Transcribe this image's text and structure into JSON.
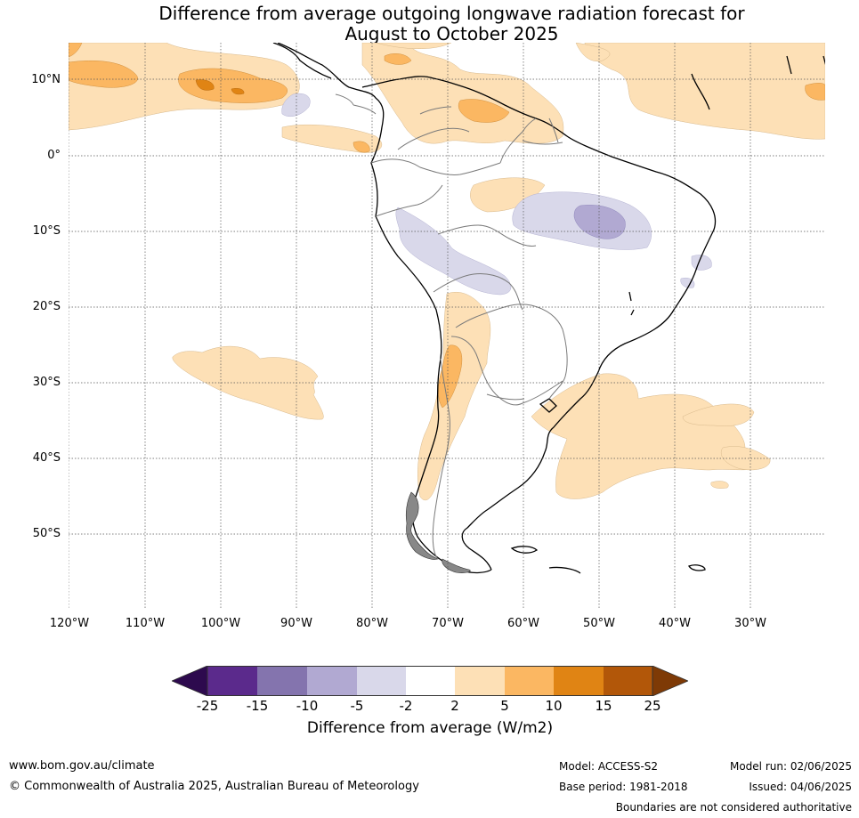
{
  "title": {
    "line1": "Difference from average outgoing longwave radiation forecast for",
    "line2": "August to October 2025"
  },
  "map": {
    "lat_labels": [
      "10°N",
      "0°",
      "10°S",
      "20°S",
      "30°S",
      "40°S",
      "50°S"
    ],
    "lon_labels": [
      "120°W",
      "110°W",
      "100°W",
      "90°W",
      "80°W",
      "70°W",
      "60°W",
      "50°W",
      "40°W",
      "30°W"
    ],
    "grid": "dotted",
    "region": "South America"
  },
  "colorbar": {
    "ticks": [
      "-25",
      "-15",
      "-10",
      "-5",
      "-2",
      "2",
      "5",
      "10",
      "15",
      "25"
    ],
    "label": "Difference from average (W/m2)",
    "colors": {
      "below_min": "#2d0a4e",
      "bins": [
        "#5b2a8c",
        "#8474ae",
        "#b1a9d2",
        "#d9d8ea",
        "#ffffff",
        "#fde0b6",
        "#fbb762",
        "#e08414",
        "#b25709"
      ],
      "above_max": "#7e3a06"
    }
  },
  "footer": {
    "website": "www.bom.gov.au/climate",
    "copyright": "© Commonwealth of Australia 2025, Australian Bureau of Meteorology",
    "model": "Model: ACCESS-S2",
    "base_period": "Base period: 1981-2018",
    "model_run": "Model run: 02/06/2025",
    "issued": "Issued: 04/06/2025",
    "disclaimer": "Boundaries are not considered authoritative"
  }
}
